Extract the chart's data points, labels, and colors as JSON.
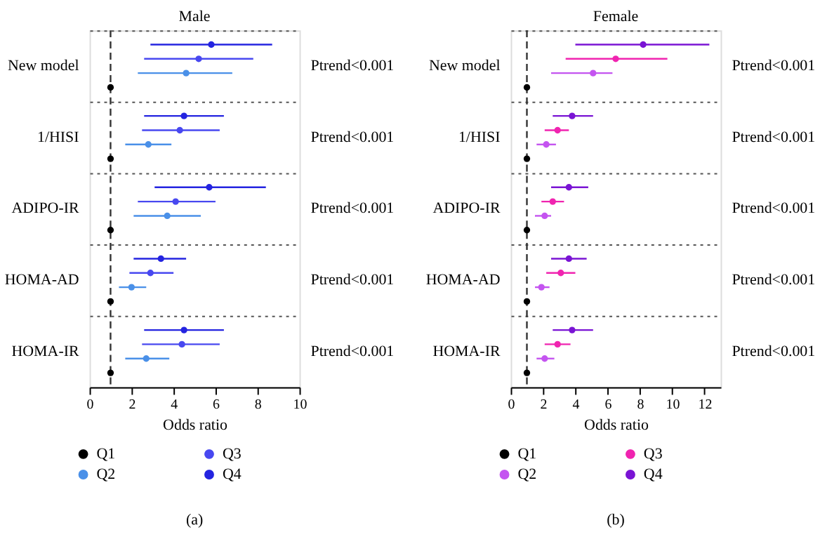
{
  "chart_data": [
    {
      "type": "scatter",
      "orientation": "horizontal",
      "title": "Male",
      "xlabel": "Odds ratio",
      "categories": [
        "New model",
        "1/HISI",
        "ADIPO-IR",
        "HOMA-AD",
        "HOMA-IR"
      ],
      "xlim": [
        0,
        10
      ],
      "xticks": [
        0,
        2,
        4,
        6,
        8,
        10
      ],
      "grid": "y",
      "legend": "bottom",
      "marker": "circle",
      "ref_lines": [
        {
          "axis": "x",
          "value": 1,
          "color": "#333333",
          "line_style": "dashed"
        }
      ],
      "series": [
        {
          "name": "Q4",
          "color": "#2424e0",
          "values": [
            5.8,
            4.5,
            5.7,
            3.4,
            4.5
          ],
          "errors": [
            [
              2.9,
              8.7
            ],
            [
              2.6,
              6.4
            ],
            [
              3.1,
              8.4
            ],
            [
              2.1,
              4.6
            ],
            [
              2.6,
              6.4
            ]
          ]
        },
        {
          "name": "Q3",
          "color": "#4848f0",
          "values": [
            5.2,
            4.3,
            4.1,
            2.9,
            4.4
          ],
          "errors": [
            [
              2.6,
              7.8
            ],
            [
              2.5,
              6.2
            ],
            [
              2.3,
              6.0
            ],
            [
              1.9,
              4.0
            ],
            [
              2.5,
              6.2
            ]
          ]
        },
        {
          "name": "Q2",
          "color": "#4a90e8",
          "values": [
            4.6,
            2.8,
            3.7,
            2.0,
            2.7
          ],
          "errors": [
            [
              2.3,
              6.8
            ],
            [
              1.7,
              3.9
            ],
            [
              2.1,
              5.3
            ],
            [
              1.4,
              2.7
            ],
            [
              1.7,
              3.8
            ]
          ]
        },
        {
          "name": "Q1",
          "color": "#000000",
          "values": [
            1,
            1,
            1,
            1,
            1
          ]
        }
      ],
      "annotations": [
        "Ptrend<0.001",
        "Ptrend<0.001",
        "Ptrend<0.001",
        "Ptrend<0.001",
        "Ptrend<0.001",
        "(a)"
      ]
    },
    {
      "type": "scatter",
      "orientation": "horizontal",
      "title": "Female",
      "xlabel": "Odds ratio",
      "categories": [
        "New model",
        "1/HISI",
        "ADIPO-IR",
        "HOMA-AD",
        "HOMA-IR"
      ],
      "xlim": [
        0,
        13
      ],
      "xticks": [
        0,
        2,
        4,
        6,
        8,
        10,
        12
      ],
      "grid": "y",
      "legend": "bottom",
      "marker": "circle",
      "ref_lines": [
        {
          "axis": "x",
          "value": 1,
          "color": "#333333",
          "line_style": "dashed"
        }
      ],
      "series": [
        {
          "name": "Q4",
          "color": "#7a14d4",
          "values": [
            8.2,
            3.8,
            3.6,
            3.6,
            3.8
          ],
          "errors": [
            [
              4.0,
              12.3
            ],
            [
              2.6,
              5.1
            ],
            [
              2.5,
              4.8
            ],
            [
              2.5,
              4.7
            ],
            [
              2.6,
              5.1
            ]
          ]
        },
        {
          "name": "Q3",
          "color": "#f024b0",
          "values": [
            6.5,
            2.9,
            2.6,
            3.1,
            2.9
          ],
          "errors": [
            [
              3.4,
              9.7
            ],
            [
              2.1,
              3.6
            ],
            [
              1.9,
              3.3
            ],
            [
              2.2,
              4.0
            ],
            [
              2.1,
              3.7
            ]
          ]
        },
        {
          "name": "Q2",
          "color": "#c454f0",
          "values": [
            5.1,
            2.2,
            2.1,
            1.9,
            2.1
          ],
          "errors": [
            [
              2.5,
              6.3
            ],
            [
              1.6,
              2.8
            ],
            [
              1.5,
              2.5
            ],
            [
              1.5,
              2.4
            ],
            [
              1.6,
              2.7
            ]
          ]
        },
        {
          "name": "Q1",
          "color": "#000000",
          "values": [
            1,
            1,
            1,
            1,
            1
          ]
        }
      ],
      "annotations": [
        "Ptrend<0.001",
        "Ptrend<0.001",
        "Ptrend<0.001",
        "Ptrend<0.001",
        "Ptrend<0.001",
        "(b)"
      ]
    }
  ]
}
